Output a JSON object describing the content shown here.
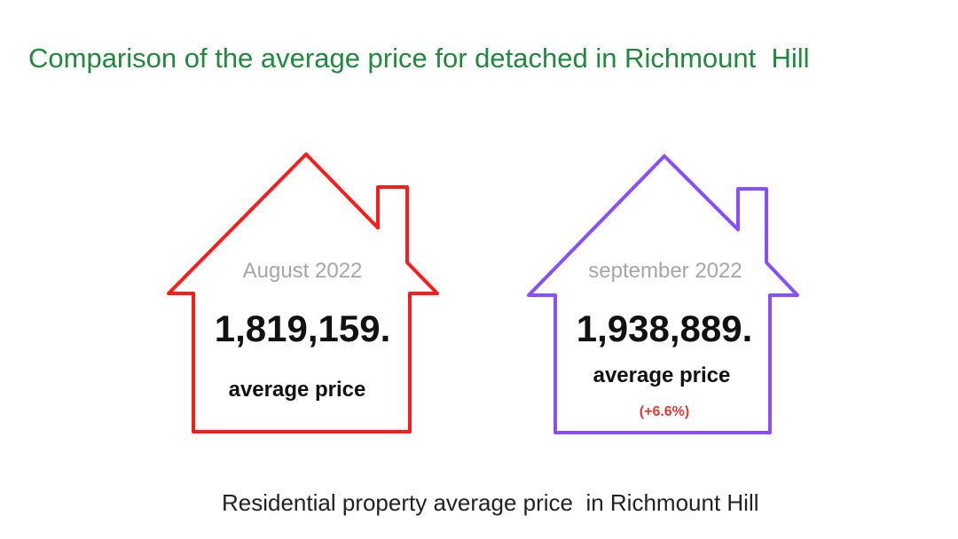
{
  "title": "Comparison of the average price for detached in Richmount  Hill",
  "houses": [
    {
      "month": "August 2022",
      "price": "1,819,159.",
      "caption": "average price",
      "change": "",
      "outline_color": "#ff1a1a"
    },
    {
      "month": "september 2022",
      "price": "1,938,889.",
      "caption": "average price",
      "change": "(+6.6%)",
      "outline_color": "#8a4dff"
    }
  ],
  "footer": "Residential property average price  in Richmount Hill",
  "colors": {
    "title": "#1f8a3b",
    "month_text": "#a6a6a6",
    "change_text": "#e53935"
  }
}
